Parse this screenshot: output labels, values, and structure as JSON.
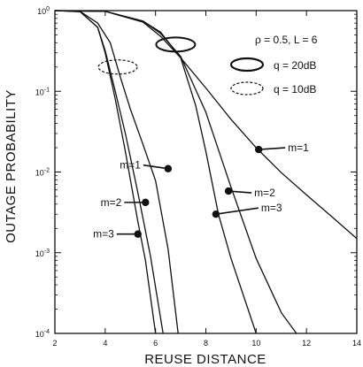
{
  "chart_data": {
    "type": "line",
    "xlabel": "REUSE DISTANCE",
    "ylabel": "OUTAGE PROBABILITY",
    "xlim": [
      2,
      14
    ],
    "ylim_log10": [
      -4,
      0
    ],
    "y_scale": "log",
    "x_ticks": [
      2,
      4,
      6,
      8,
      10,
      12,
      14
    ],
    "y_ticks": [
      {
        "exp": 0,
        "base": "10",
        "sup": "0"
      },
      {
        "exp": -1,
        "base": "10",
        "sup": "-1"
      },
      {
        "exp": -2,
        "base": "10",
        "sup": "-2"
      },
      {
        "exp": -3,
        "base": "10",
        "sup": "-3"
      },
      {
        "exp": -4,
        "base": "10",
        "sup": "-4"
      }
    ],
    "params_label": "ρ = 0.5, L = 6",
    "legend": [
      {
        "label": "q = 20dB",
        "style": "solid"
      },
      {
        "label": "q = 10dB",
        "style": "dashed"
      }
    ],
    "series": [
      {
        "q": "20dB",
        "m": "1",
        "x": [
          2.0,
          4.0,
          5.5,
          6.2,
          7.0,
          8.0,
          9.0,
          10.0,
          11.0,
          12.0,
          13.0,
          14.0
        ],
        "y": [
          1.0,
          0.98,
          0.72,
          0.48,
          0.26,
          0.11,
          0.045,
          0.02,
          0.0098,
          0.0052,
          0.0028,
          0.0015
        ]
      },
      {
        "q": "20dB",
        "m": "2",
        "x": [
          2.0,
          4.0,
          5.5,
          6.2,
          7.0,
          8.0,
          9.0,
          10.0,
          11.0,
          11.6
        ],
        "y": [
          1.0,
          0.98,
          0.74,
          0.52,
          0.27,
          0.055,
          0.0065,
          0.00085,
          0.00018,
          0.0001
        ]
      },
      {
        "q": "20dB",
        "m": "3",
        "x": [
          2.0,
          4.0,
          5.5,
          6.2,
          7.0,
          7.6,
          8.0,
          8.5,
          9.0,
          10.0
        ],
        "y": [
          1.0,
          0.98,
          0.74,
          0.54,
          0.26,
          0.066,
          0.018,
          0.003,
          0.00085,
          0.0001
        ]
      },
      {
        "q": "10dB",
        "m": "1",
        "x": [
          2.0,
          3.0,
          3.7,
          4.2,
          4.6,
          5.0,
          5.5,
          6.0,
          6.5,
          6.9
        ],
        "y": [
          1.0,
          0.98,
          0.7,
          0.4,
          0.15,
          0.06,
          0.022,
          0.0078,
          0.0011,
          0.0001
        ]
      },
      {
        "q": "10dB",
        "m": "2",
        "x": [
          2.0,
          3.0,
          3.7,
          4.0,
          4.4,
          4.8,
          5.3,
          5.8,
          6.3
        ],
        "y": [
          1.0,
          0.97,
          0.62,
          0.32,
          0.1,
          0.03,
          0.0055,
          0.0009,
          0.0001
        ]
      },
      {
        "q": "10dB",
        "m": "3",
        "x": [
          2.0,
          3.0,
          3.7,
          4.0,
          4.4,
          4.8,
          5.3,
          5.6,
          6.0
        ],
        "y": [
          1.0,
          0.97,
          0.62,
          0.3,
          0.08,
          0.018,
          0.0024,
          0.0008,
          0.0001
        ]
      }
    ],
    "annotations": [
      {
        "text": "m=1",
        "x": 10.1,
        "y": 0.019
      },
      {
        "text": "m=2",
        "x": 8.9,
        "y": 0.0058
      },
      {
        "text": "m=3",
        "x": 8.4,
        "y": 0.003
      },
      {
        "text": "m=1",
        "x": 6.5,
        "y": 0.011
      },
      {
        "text": "m=2",
        "x": 5.6,
        "y": 0.0042
      },
      {
        "text": "m=3",
        "x": 5.3,
        "y": 0.0017
      }
    ],
    "ellipses": [
      {
        "q": "20dB",
        "x": 6.8,
        "y": 0.38
      },
      {
        "q": "10dB",
        "x": 4.5,
        "y": 0.2
      }
    ]
  }
}
